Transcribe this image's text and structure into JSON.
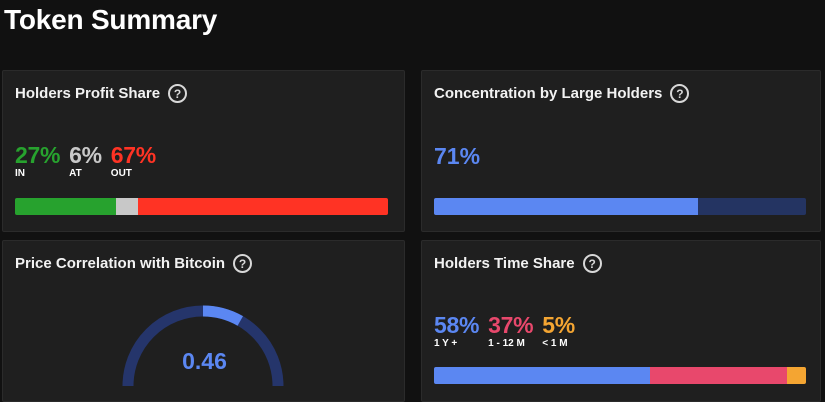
{
  "page": {
    "title": "Token Summary"
  },
  "colors": {
    "green": "#27a22e",
    "gray": "#c8c8c8",
    "red": "#ff3324",
    "blue": "#5b87f2",
    "navy": "#243462",
    "pink": "#e8486c",
    "orange": "#f4a532",
    "gauge_track": "#25356b"
  },
  "profit_share": {
    "title": "Holders Profit Share",
    "help_icon": "question-circle-icon",
    "segments": [
      {
        "value_text": "27%",
        "label": "IN",
        "value": 27,
        "color": "#27a22e"
      },
      {
        "value_text": "6%",
        "label": "AT",
        "value": 6,
        "color": "#c8c8c8"
      },
      {
        "value_text": "67%",
        "label": "OUT",
        "value": 67,
        "color": "#ff3324"
      }
    ]
  },
  "concentration": {
    "title": "Concentration by Large Holders",
    "help_icon": "question-circle-icon",
    "value_text": "71%",
    "value": 71
  },
  "correlation": {
    "title": "Price Correlation with Bitcoin",
    "help_icon": "question-circle-icon",
    "value_text": "0.46",
    "value": 0.46
  },
  "time_share": {
    "title": "Holders Time Share",
    "help_icon": "question-circle-icon",
    "segments": [
      {
        "value_text": "58%",
        "label": "1 Y +",
        "value": 58,
        "color": "#5b87f2"
      },
      {
        "value_text": "37%",
        "label": "1 - 12 M",
        "value": 37,
        "color": "#e8486c"
      },
      {
        "value_text": "5%",
        "label": "< 1 M",
        "value": 5,
        "color": "#f4a532"
      }
    ]
  }
}
